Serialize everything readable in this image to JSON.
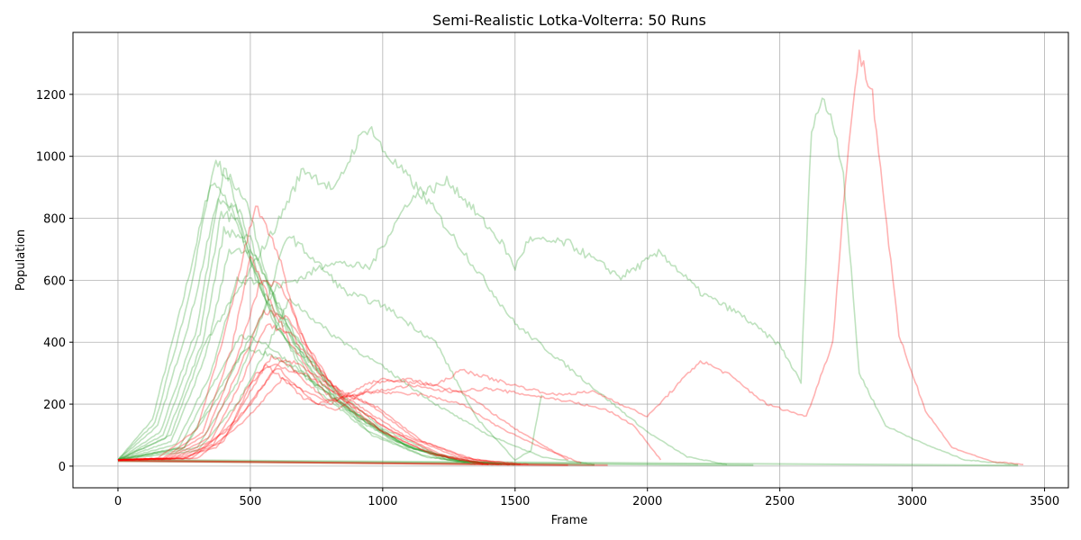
{
  "chart_data": {
    "type": "line",
    "title": "Semi-Realistic Lotka-Volterra: 50 Runs",
    "xlabel": "Frame",
    "ylabel": "Population",
    "xlim": [
      -170,
      3590
    ],
    "ylim": [
      -70,
      1400
    ],
    "xticks": [
      0,
      500,
      1000,
      1500,
      2000,
      2500,
      3000,
      3500
    ],
    "yticks": [
      0,
      200,
      400,
      600,
      800,
      1000,
      1200
    ],
    "grid": true,
    "colors": {
      "prey": "#2ca02c",
      "predator": "#ff0000",
      "prey_opacity": 0.3,
      "predator_opacity": 0.3
    },
    "series": [
      {
        "group": "prey",
        "x": [
          0,
          130,
          250,
          370,
          430,
          520,
          700,
          900,
          1100,
          1300,
          1450
        ],
        "y": [
          20,
          150,
          550,
          990,
          900,
          600,
          300,
          150,
          60,
          15,
          5
        ]
      },
      {
        "group": "prey",
        "x": [
          0,
          150,
          280,
          400,
          480,
          600,
          800,
          1000,
          1200,
          1400
        ],
        "y": [
          20,
          130,
          500,
          950,
          870,
          500,
          260,
          120,
          40,
          5
        ]
      },
      {
        "group": "prey",
        "x": [
          0,
          140,
          260,
          350,
          420,
          550,
          750,
          950,
          1150,
          1350
        ],
        "y": [
          20,
          140,
          520,
          910,
          850,
          560,
          280,
          110,
          35,
          5
        ]
      },
      {
        "group": "prey",
        "x": [
          0,
          160,
          300,
          380,
          460,
          580,
          760,
          960,
          1160,
          1380
        ],
        "y": [
          20,
          110,
          450,
          860,
          820,
          480,
          240,
          100,
          30,
          5
        ]
      },
      {
        "group": "prey",
        "x": [
          0,
          170,
          310,
          390,
          450,
          600,
          820,
          1020,
          1220,
          1420
        ],
        "y": [
          20,
          100,
          430,
          820,
          790,
          450,
          220,
          90,
          25,
          5
        ]
      },
      {
        "group": "prey",
        "x": [
          0,
          180,
          320,
          400,
          500,
          650,
          850,
          1050,
          1250,
          1450
        ],
        "y": [
          20,
          90,
          400,
          760,
          730,
          420,
          200,
          80,
          20,
          5
        ]
      },
      {
        "group": "prey",
        "x": [
          0,
          200,
          330,
          420,
          520,
          680,
          880,
          1080,
          1280,
          1480
        ],
        "y": [
          20,
          80,
          350,
          700,
          680,
          380,
          180,
          70,
          20,
          5
        ]
      },
      {
        "group": "prey",
        "x": [
          0,
          220,
          350,
          450,
          560,
          720,
          900,
          1100,
          1300,
          1500
        ],
        "y": [
          20,
          70,
          300,
          600,
          590,
          350,
          170,
          60,
          15,
          5
        ]
      },
      {
        "group": "prey",
        "x": [
          0,
          230,
          350,
          460,
          550,
          700,
          900,
          1100,
          1300,
          1500
        ],
        "y": [
          20,
          60,
          250,
          420,
          400,
          300,
          160,
          60,
          15,
          5
        ]
      },
      {
        "group": "prey",
        "x": [
          0,
          250,
          370,
          480,
          580,
          720,
          920,
          1120,
          1320,
          1520
        ],
        "y": [
          20,
          60,
          230,
          380,
          360,
          280,
          150,
          55,
          15,
          5
        ]
      },
      {
        "group": "prey",
        "x": [
          0,
          200,
          330,
          450,
          600,
          700,
          820,
          900,
          950,
          1000,
          1150,
          1300,
          1500,
          1700,
          2000,
          2150,
          2300
        ],
        "y": [
          20,
          100,
          400,
          560,
          780,
          960,
          890,
          1040,
          1100,
          1020,
          880,
          700,
          460,
          320,
          110,
          30,
          5
        ]
      },
      {
        "group": "prey",
        "x": [
          0,
          250,
          400,
          500,
          600,
          700,
          800,
          950,
          1100,
          1250,
          1350,
          1450,
          1500,
          1550,
          1700,
          1900,
          2050,
          2200,
          2350,
          2500,
          2560,
          2580,
          2620,
          2660,
          2700,
          2740,
          2800,
          2900,
          3050,
          3200,
          3400
        ],
        "y": [
          20,
          60,
          250,
          420,
          580,
          610,
          660,
          640,
          860,
          920,
          820,
          720,
          640,
          730,
          720,
          610,
          690,
          560,
          490,
          390,
          300,
          270,
          1100,
          1180,
          1120,
          950,
          300,
          130,
          70,
          20,
          5
        ]
      },
      {
        "group": "prey",
        "x": [
          0,
          300,
          450,
          560,
          640,
          760,
          860,
          1000,
          1200,
          1350,
          1500,
          1560,
          1600
        ],
        "y": [
          20,
          60,
          270,
          520,
          750,
          650,
          560,
          520,
          400,
          160,
          20,
          50,
          230
        ]
      },
      {
        "group": "prey",
        "x": [
          0,
          300,
          450,
          550,
          650,
          800,
          1000,
          1200,
          1400,
          1600,
          1800
        ],
        "y": [
          20,
          50,
          200,
          360,
          540,
          430,
          320,
          200,
          100,
          30,
          5
        ]
      },
      {
        "group": "prey",
        "x": [
          0,
          3400
        ],
        "y": [
          20,
          2
        ]
      },
      {
        "group": "prey",
        "x": [
          0,
          2400
        ],
        "y": [
          18,
          3
        ]
      },
      {
        "group": "prey",
        "x": [
          0,
          1800
        ],
        "y": [
          16,
          4
        ]
      },
      {
        "group": "predator",
        "x": [
          0,
          150,
          300,
          400,
          520,
          600,
          680,
          800,
          1000,
          1200,
          1400
        ],
        "y": [
          20,
          25,
          120,
          420,
          840,
          700,
          450,
          250,
          130,
          40,
          5
        ]
      },
      {
        "group": "predator",
        "x": [
          0,
          170,
          320,
          430,
          500,
          560,
          650,
          780,
          980,
          1180,
          1380
        ],
        "y": [
          20,
          25,
          110,
          380,
          680,
          560,
          400,
          240,
          120,
          40,
          5
        ]
      },
      {
        "group": "predator",
        "x": [
          0,
          180,
          330,
          450,
          540,
          620,
          720,
          840,
          1000,
          1200,
          1400
        ],
        "y": [
          20,
          25,
          100,
          350,
          600,
          580,
          380,
          220,
          110,
          35,
          5
        ]
      },
      {
        "group": "predator",
        "x": [
          0,
          190,
          340,
          460,
          550,
          640,
          740,
          860,
          1040,
          1240,
          1440
        ],
        "y": [
          20,
          25,
          90,
          320,
          500,
          480,
          340,
          210,
          110,
          30,
          5
        ]
      },
      {
        "group": "predator",
        "x": [
          0,
          200,
          350,
          470,
          560,
          660,
          760,
          900,
          1080,
          1280,
          1480
        ],
        "y": [
          20,
          25,
          80,
          280,
          460,
          420,
          300,
          200,
          100,
          30,
          5
        ]
      },
      {
        "group": "predator",
        "x": [
          0,
          210,
          360,
          480,
          580,
          680,
          800,
          950,
          1120,
          1320,
          1520
        ],
        "y": [
          20,
          25,
          70,
          240,
          350,
          330,
          260,
          200,
          90,
          25,
          5
        ]
      },
      {
        "group": "predator",
        "x": [
          0,
          220,
          370,
          500,
          600,
          700,
          820,
          980,
          1150,
          1350,
          1550
        ],
        "y": [
          20,
          25,
          60,
          200,
          320,
          300,
          240,
          190,
          80,
          20,
          5
        ]
      },
      {
        "group": "predator",
        "x": [
          0,
          250,
          400,
          520,
          620,
          700,
          800,
          950,
          1100,
          1300,
          1500,
          1700
        ],
        "y": [
          20,
          25,
          80,
          300,
          340,
          280,
          200,
          270,
          280,
          240,
          120,
          20
        ]
      },
      {
        "group": "predator",
        "x": [
          0,
          260,
          420,
          560,
          700,
          820,
          1000,
          1200,
          1300,
          1500,
          1650,
          1800,
          2000,
          2100,
          2200,
          2300,
          2450,
          2600,
          2700,
          2760,
          2800,
          2850,
          2950,
          3050,
          3150,
          3300,
          3420
        ],
        "y": [
          20,
          25,
          120,
          330,
          220,
          180,
          280,
          260,
          310,
          260,
          230,
          240,
          160,
          250,
          340,
          300,
          200,
          160,
          400,
          1050,
          1330,
          1200,
          420,
          180,
          60,
          15,
          5
        ]
      },
      {
        "group": "predator",
        "x": [
          0,
          280,
          450,
          600,
          750,
          900,
          1100,
          1250,
          1400,
          1550,
          1700,
          1850,
          1950,
          2050
        ],
        "y": [
          20,
          25,
          150,
          320,
          200,
          230,
          260,
          240,
          250,
          230,
          210,
          180,
          130,
          20
        ]
      },
      {
        "group": "predator",
        "x": [
          0,
          300,
          470,
          620,
          780,
          950,
          1150,
          1300,
          1450,
          1600,
          1750
        ],
        "y": [
          20,
          25,
          140,
          280,
          210,
          240,
          230,
          200,
          120,
          60,
          10
        ]
      },
      {
        "group": "predator",
        "x": [
          0,
          1700
        ],
        "y": [
          18,
          3
        ]
      },
      {
        "group": "predator",
        "x": [
          0,
          1850
        ],
        "y": [
          17,
          3
        ]
      }
    ]
  }
}
